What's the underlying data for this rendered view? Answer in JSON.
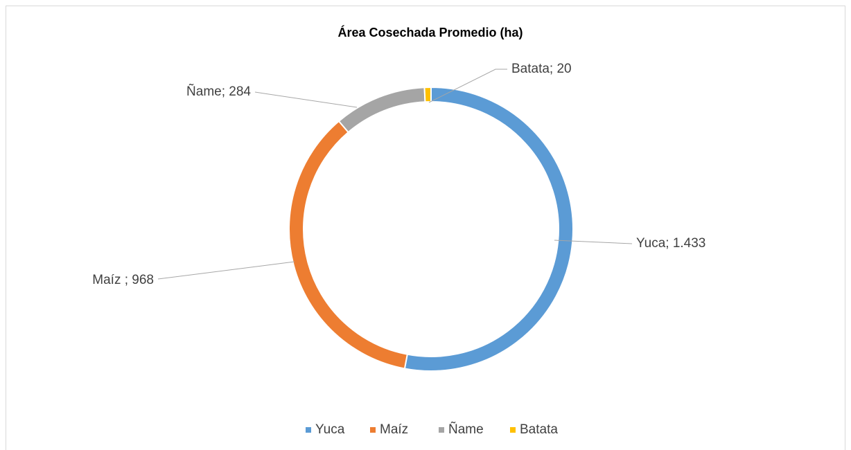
{
  "chart_data": {
    "type": "donut",
    "title": "Área Cosechada Promedio (ha)",
    "categories": [
      "Yuca",
      "Maíz",
      "Ñame",
      "Batata"
    ],
    "values": [
      1433,
      968,
      284,
      20
    ],
    "value_labels": [
      "Yuca; 1.433",
      "Maíz ; 968",
      "Ñame; 284",
      "Batata; 20"
    ],
    "colors": [
      "#5b9bd5",
      "#ed7d31",
      "#a5a5a5",
      "#ffc000"
    ],
    "legend": "bottom"
  }
}
